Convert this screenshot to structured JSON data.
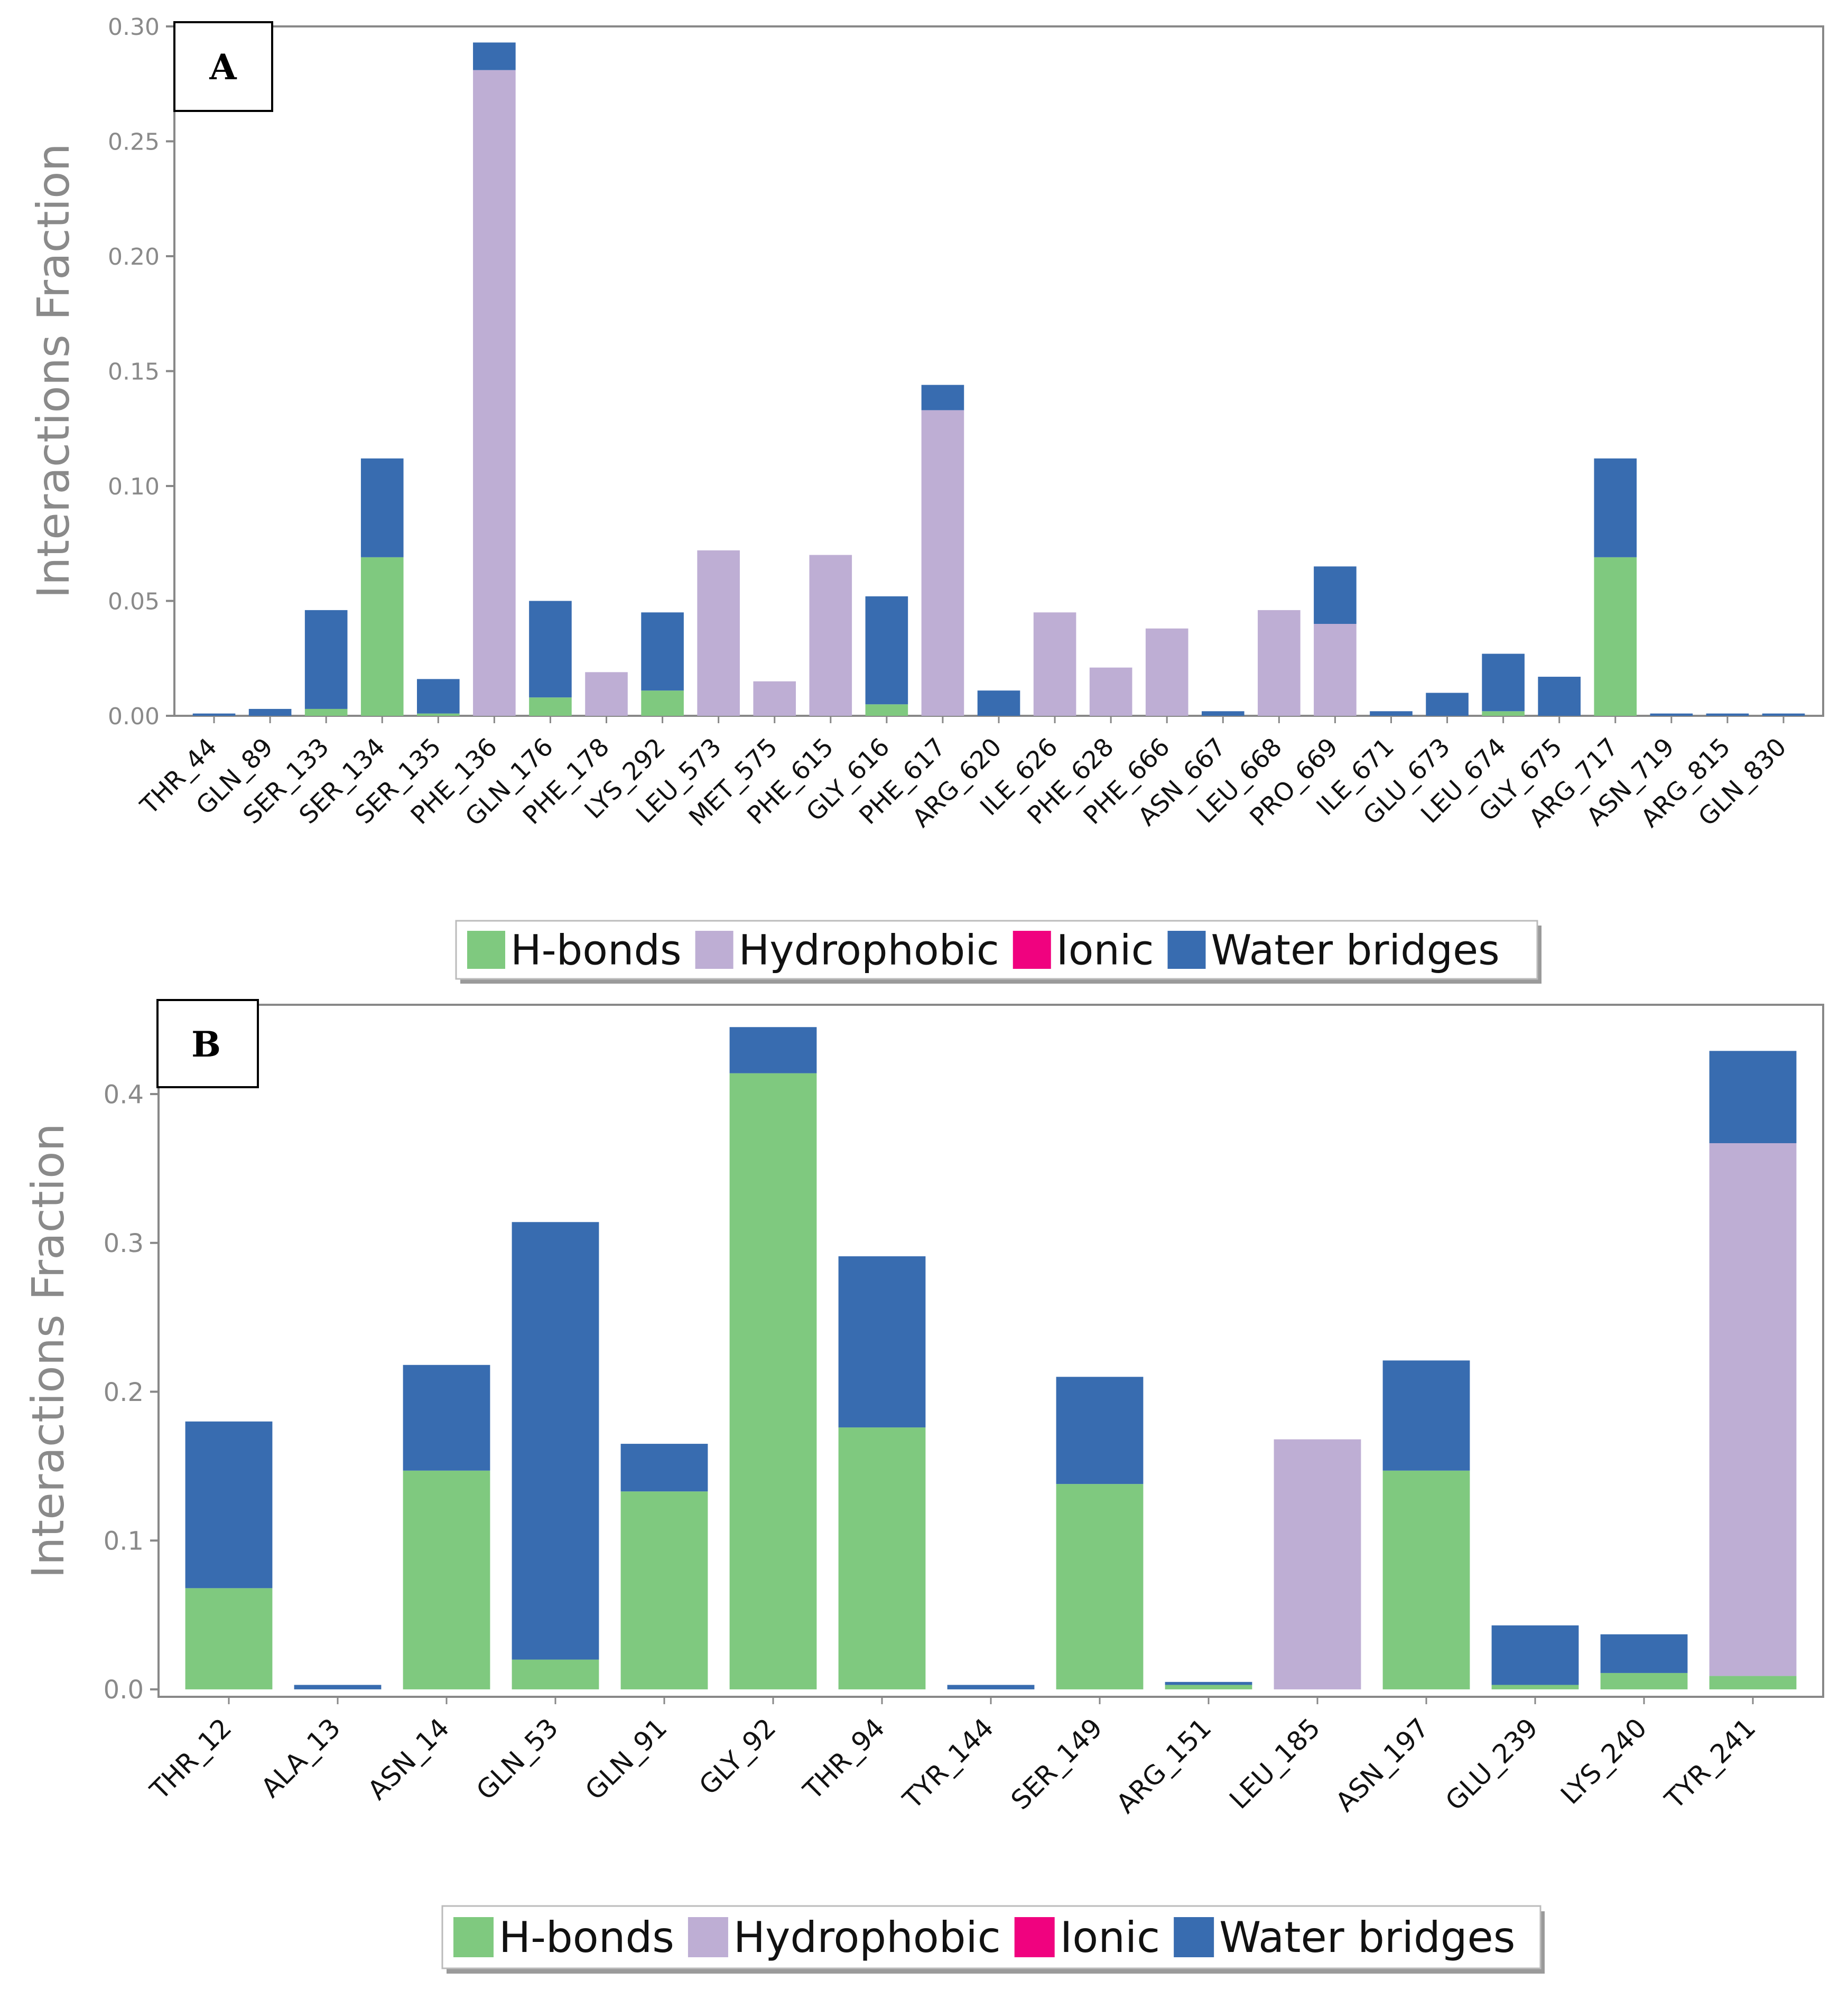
{
  "legend": {
    "items": [
      {
        "label": "H-bonds",
        "color": "#7fc97f"
      },
      {
        "label": "Hydrophobic",
        "color": "#beaed4"
      },
      {
        "label": "Ionic",
        "color": "#f0027f"
      },
      {
        "label": "Water bridges",
        "color": "#386cb0"
      }
    ]
  },
  "chart_data": [
    {
      "type": "bar",
      "panel_label": "A",
      "ylabel": "Interactions Fraction",
      "ylim": [
        0,
        0.3
      ],
      "yticks": [
        0.0,
        0.05,
        0.1,
        0.15,
        0.2,
        0.25,
        0.3
      ],
      "ytick_labels": [
        "0.00",
        "0.05",
        "0.10",
        "0.15",
        "0.20",
        "0.25",
        "0.30"
      ],
      "stacked": true,
      "categories": [
        "THR_44",
        "GLN_89",
        "SER_133",
        "SER_134",
        "SER_135",
        "PHE_136",
        "GLN_176",
        "PHE_178",
        "LYS_292",
        "LEU_573",
        "MET_575",
        "PHE_615",
        "GLY_616",
        "PHE_617",
        "ARG_620",
        "ILE_626",
        "PHE_628",
        "PHE_666",
        "ASN_667",
        "LEU_668",
        "PRO_669",
        "ILE_671",
        "GLU_673",
        "LEU_674",
        "GLY_675",
        "ARG_717",
        "ASN_719",
        "ARG_815",
        "GLN_830"
      ],
      "series": [
        {
          "name": "H-bonds",
          "color": "#7fc97f",
          "values": [
            0,
            0,
            0.003,
            0.069,
            0.001,
            0,
            0.008,
            0,
            0.011,
            0,
            0,
            0,
            0.005,
            0,
            0,
            0,
            0,
            0,
            0,
            0,
            0,
            0,
            0,
            0.002,
            0,
            0.069,
            0,
            0,
            0
          ]
        },
        {
          "name": "Hydrophobic",
          "color": "#beaed4",
          "values": [
            0,
            0,
            0,
            0,
            0,
            0.281,
            0,
            0.019,
            0,
            0.072,
            0.015,
            0.07,
            0,
            0.133,
            0,
            0.045,
            0.021,
            0.038,
            0,
            0.046,
            0.04,
            0,
            0,
            0,
            0,
            0,
            0,
            0,
            0
          ]
        },
        {
          "name": "Ionic",
          "color": "#f0027f",
          "values": [
            0,
            0,
            0,
            0,
            0,
            0,
            0,
            0,
            0,
            0,
            0,
            0,
            0,
            0,
            0,
            0,
            0,
            0,
            0,
            0,
            0,
            0,
            0,
            0,
            0,
            0,
            0,
            0,
            0
          ]
        },
        {
          "name": "Water bridges",
          "color": "#386cb0",
          "values": [
            0.001,
            0.003,
            0.043,
            0.043,
            0.015,
            0.012,
            0.042,
            0,
            0.034,
            0,
            0,
            0,
            0.047,
            0.011,
            0.011,
            0,
            0,
            0,
            0.002,
            0,
            0.025,
            0.002,
            0.01,
            0.025,
            0.017,
            0.043,
            0.001,
            0.001,
            0.001
          ]
        }
      ]
    },
    {
      "type": "bar",
      "panel_label": "B",
      "ylabel": "Interactions Fraction",
      "ylim": [
        0,
        0.46
      ],
      "yticks": [
        0.0,
        0.1,
        0.2,
        0.3,
        0.4
      ],
      "ytick_labels": [
        "0.0",
        "0.1",
        "0.2",
        "0.3",
        "0.4"
      ],
      "stacked": true,
      "categories": [
        "THR_12",
        "ALA_13",
        "ASN_14",
        "GLN_53",
        "GLN_91",
        "GLY_92",
        "THR_94",
        "TYR_144",
        "SER_149",
        "ARG_151",
        "LEU_185",
        "ASN_197",
        "GLU_239",
        "LYS_240",
        "TYR_241"
      ],
      "series": [
        {
          "name": "H-bonds",
          "color": "#7fc97f",
          "values": [
            0.068,
            0,
            0.147,
            0.02,
            0.133,
            0.414,
            0.176,
            0,
            0.138,
            0.003,
            0,
            0.147,
            0.003,
            0.011,
            0.009
          ]
        },
        {
          "name": "Hydrophobic",
          "color": "#beaed4",
          "values": [
            0,
            0,
            0,
            0,
            0,
            0,
            0,
            0,
            0,
            0,
            0.168,
            0,
            0,
            0,
            0.358
          ]
        },
        {
          "name": "Ionic",
          "color": "#f0027f",
          "values": [
            0,
            0,
            0,
            0,
            0,
            0,
            0,
            0,
            0,
            0,
            0,
            0,
            0,
            0,
            0
          ]
        },
        {
          "name": "Water bridges",
          "color": "#386cb0",
          "values": [
            0.112,
            0.003,
            0.071,
            0.294,
            0.032,
            0.031,
            0.115,
            0.003,
            0.072,
            0.002,
            0,
            0.074,
            0.04,
            0.026,
            0.062
          ]
        }
      ]
    }
  ]
}
